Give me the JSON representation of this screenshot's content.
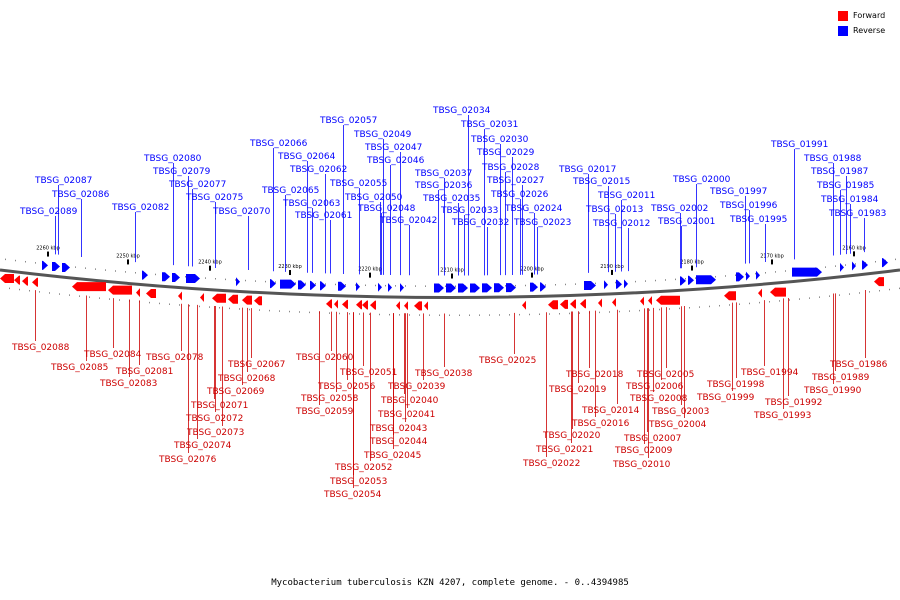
{
  "legend": {
    "forward": "Forward",
    "reverse": "Reverse",
    "forward_color": "#ff0000",
    "reverse_color": "#0000ff"
  },
  "caption": "Mycobacterium tuberculosis KZN 4207, complete genome. - 0..4394985",
  "scale_labels": [
    "2260 kbp",
    "2250 kbp",
    "2240 kbp",
    "2230 kbp",
    "2220 kbp",
    "2210 kbp",
    "2200 kbp",
    "2190 kbp",
    "2180 kbp",
    "2170 kbp",
    "2160 kbp"
  ],
  "reverse_genes": [
    "TBSG_02087",
    "TBSG_02086",
    "TBSG_02089",
    "TBSG_02082",
    "TBSG_02080",
    "TBSG_02079",
    "TBSG_02077",
    "TBSG_02075",
    "TBSG_02070",
    "TBSG_02066",
    "TBSG_02064",
    "TBSG_02062",
    "TBSG_02065",
    "TBSG_02063",
    "TBSG_02061",
    "TBSG_02057",
    "TBSG_02049",
    "TBSG_02047",
    "TBSG_02046",
    "TBSG_02055",
    "TBSG_02050",
    "TBSG_02048",
    "TBSG_02042",
    "TBSG_02034",
    "TBSG_02031",
    "TBSG_02030",
    "TBSG_02029",
    "TBSG_02028",
    "TBSG_02037",
    "TBSG_02027",
    "TBSG_02036",
    "TBSG_02026",
    "TBSG_02035",
    "TBSG_02033",
    "TBSG_02024",
    "TBSG_02032",
    "TBSG_02023",
    "TBSG_02017",
    "TBSG_02015",
    "TBSG_02011",
    "TBSG_02013",
    "TBSG_02012",
    "TBSG_02000",
    "TBSG_02002",
    "TBSG_01997",
    "TBSG_02001",
    "TBSG_01996",
    "TBSG_01995",
    "TBSG_01991",
    "TBSG_01988",
    "TBSG_01987",
    "TBSG_01985",
    "TBSG_01984",
    "TBSG_01983"
  ],
  "forward_genes": [
    "TBSG_02088",
    "TBSG_02084",
    "TBSG_02085",
    "TBSG_02081",
    "TBSG_02083",
    "TBSG_02078",
    "TBSG_02067",
    "TBSG_02068",
    "TBSG_02069",
    "TBSG_02071",
    "TBSG_02072",
    "TBSG_02073",
    "TBSG_02074",
    "TBSG_02076",
    "TBSG_02060",
    "TBSG_02051",
    "TBSG_02056",
    "TBSG_02058",
    "TBSG_02059",
    "TBSG_02038",
    "TBSG_02039",
    "TBSG_02040",
    "TBSG_02041",
    "TBSG_02043",
    "TBSG_02044",
    "TBSG_02045",
    "TBSG_02052",
    "TBSG_02053",
    "TBSG_02054",
    "TBSG_02025",
    "TBSG_02018",
    "TBSG_02019",
    "TBSG_02014",
    "TBSG_02016",
    "TBSG_02020",
    "TBSG_02021",
    "TBSG_02022",
    "TBSG_02005",
    "TBSG_02006",
    "TBSG_02008",
    "TBSG_02003",
    "TBSG_02004",
    "TBSG_02007",
    "TBSG_02009",
    "TBSG_02010",
    "TBSG_01994",
    "TBSG_01998",
    "TBSG_01999",
    "TBSG_01992",
    "TBSG_01993",
    "TBSG_01986",
    "TBSG_01989",
    "TBSG_01990"
  ]
}
